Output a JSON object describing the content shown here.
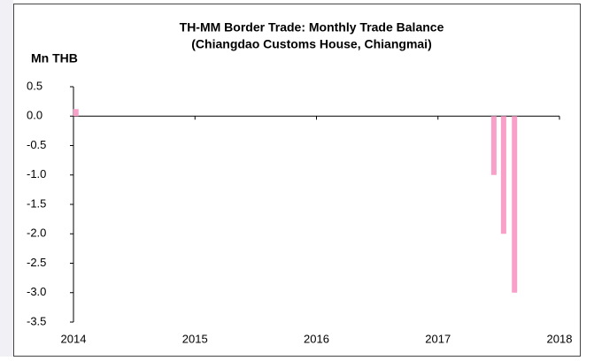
{
  "chart_data": {
    "type": "bar",
    "title": "TH-MM Border Trade: Monthly Trade Balance",
    "subtitle": "(Chiangdao Customs House, Chiangmai)",
    "y_label": "Mn THB",
    "x": [
      2014.02,
      2017.46,
      2017.54,
      2017.63
    ],
    "values": [
      0.12,
      -1.0,
      -2.0,
      -3.0
    ],
    "color": "#f9a0c9",
    "xlim": [
      2014,
      2018
    ],
    "xticks": [
      2014,
      2015,
      2016,
      2017,
      2018
    ],
    "ylim": [
      -3.5,
      0.5
    ],
    "yticks": [
      0.5,
      {
        "value": 0,
        "label": "0.0"
      },
      -0.5,
      {
        "value": -1,
        "label": "-1.0"
      },
      -1.5,
      {
        "value": -2,
        "label": "-2.0"
      },
      -2.5,
      {
        "value": -3,
        "label": "-3.0"
      },
      -3.5
    ],
    "grid": false
  }
}
